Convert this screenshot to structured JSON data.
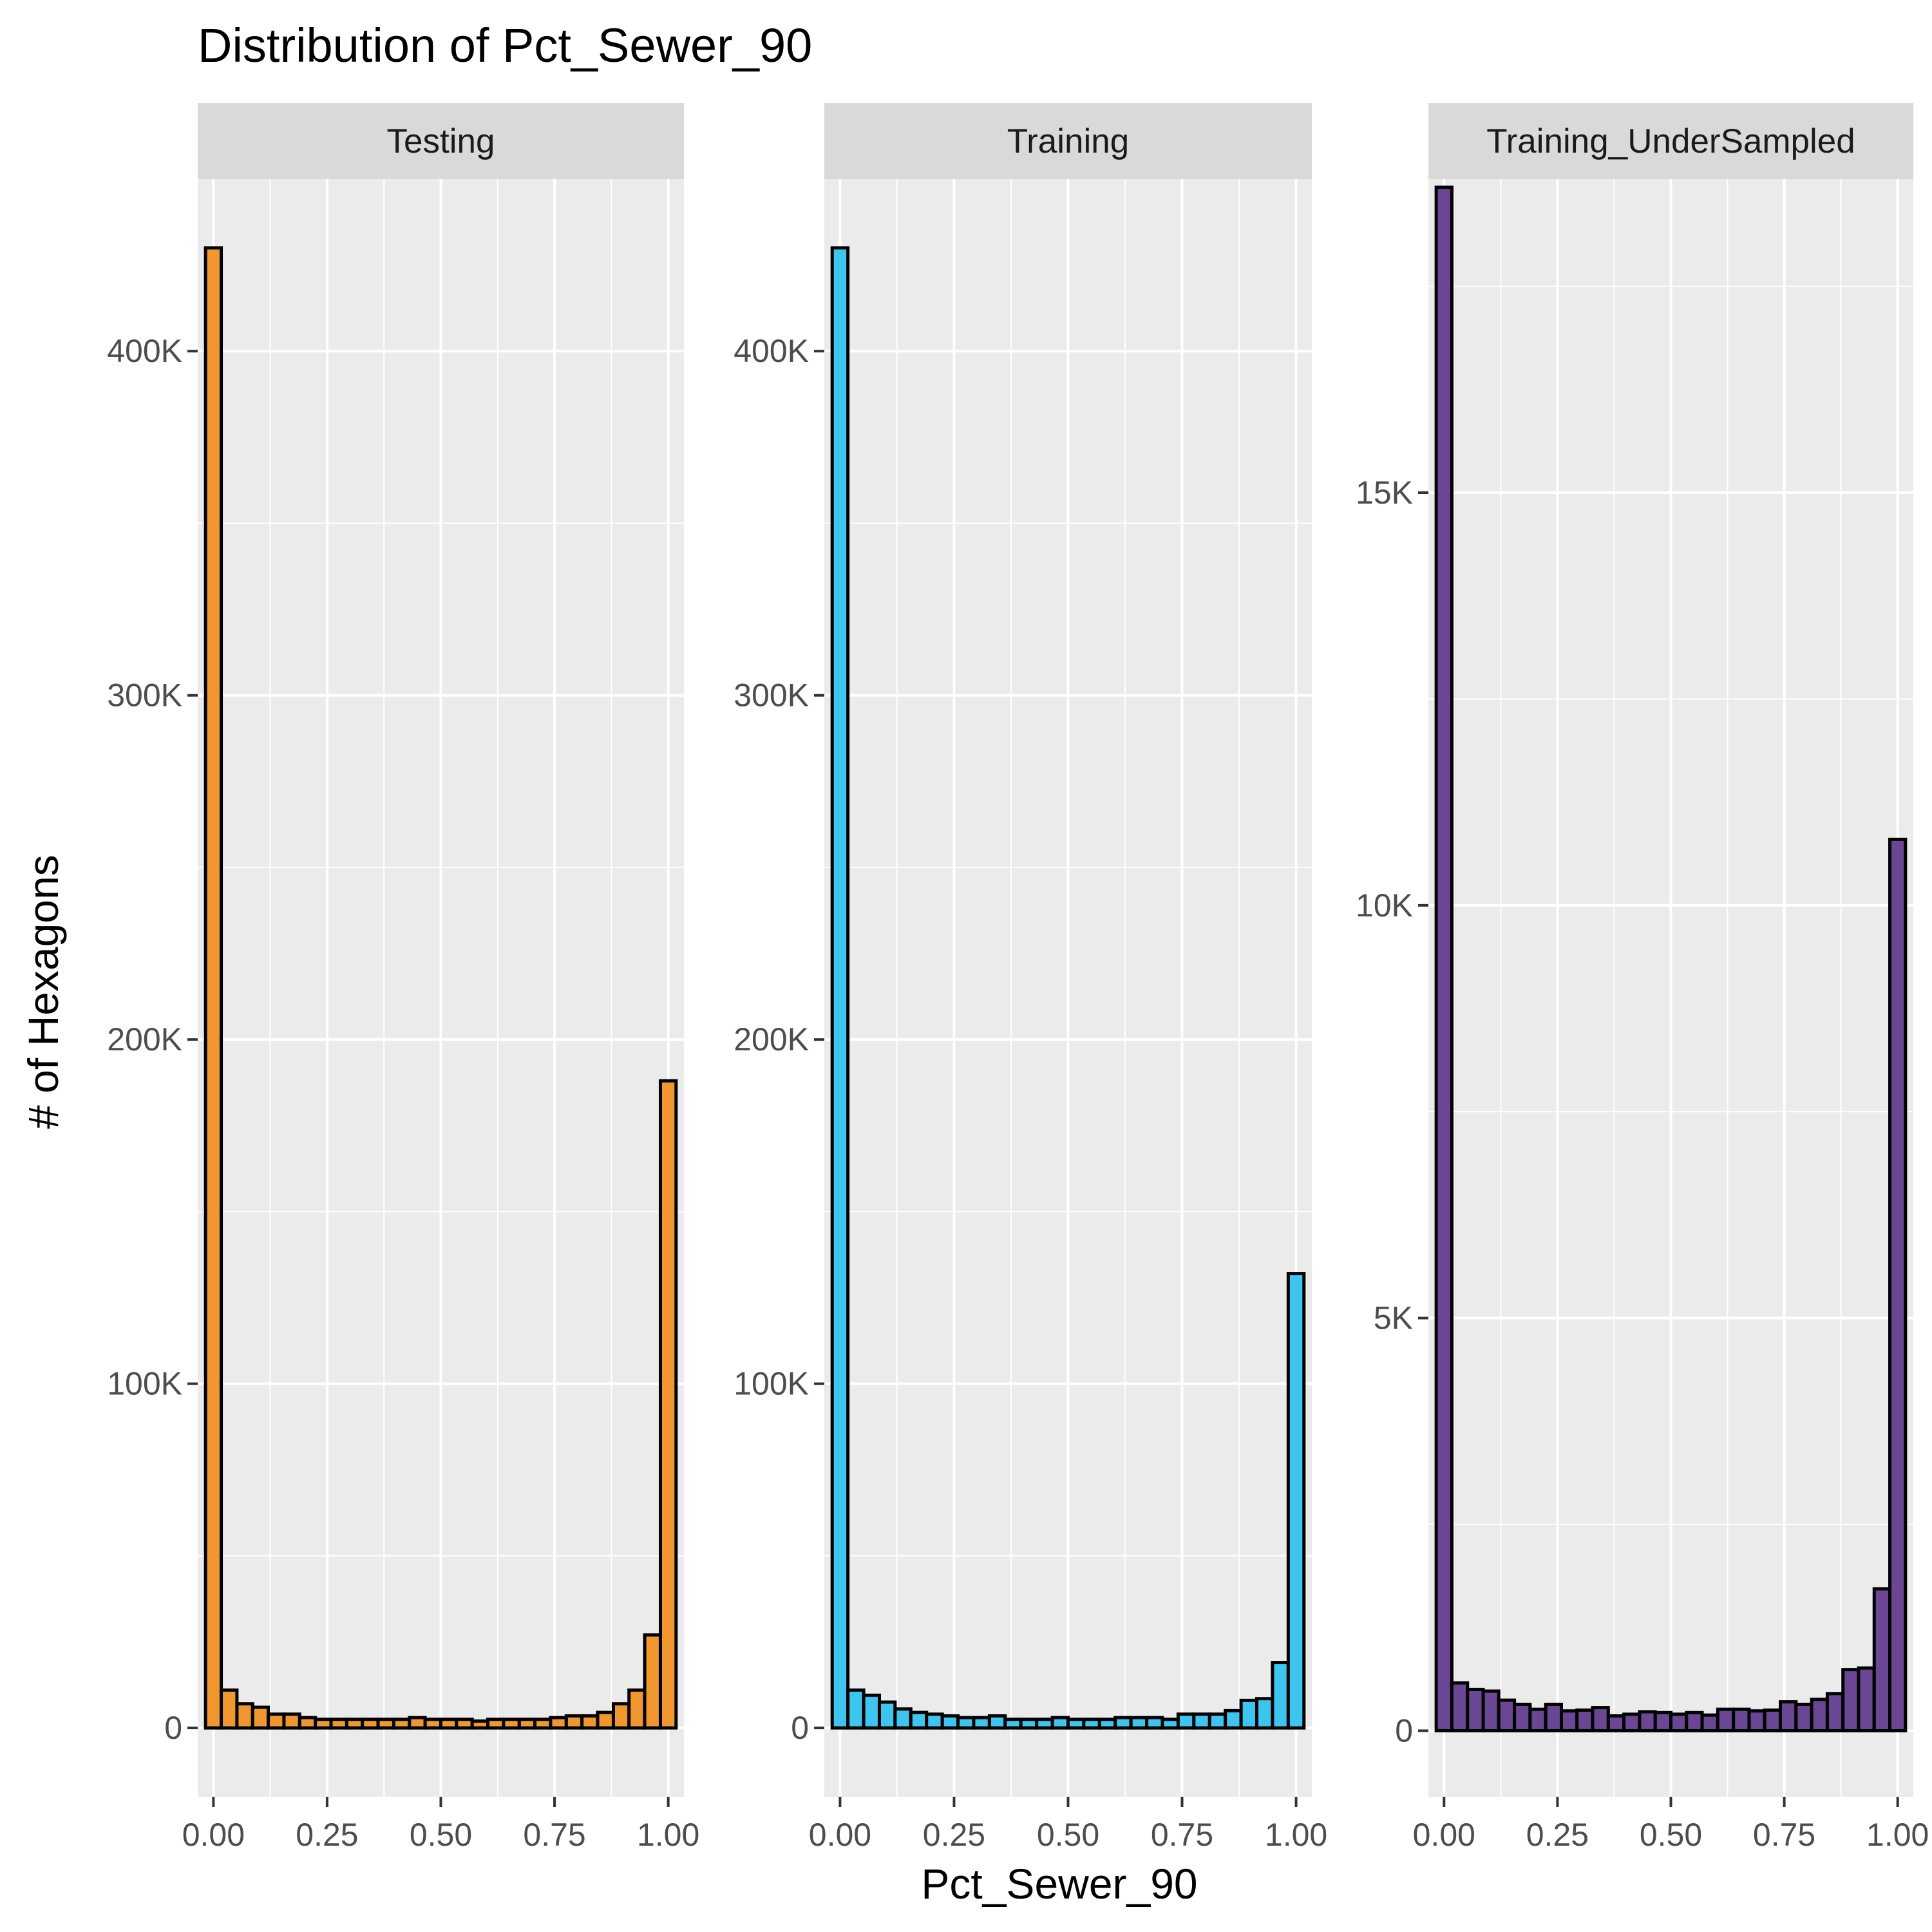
{
  "chart_data": {
    "type": "bar",
    "title": "Distribution of Pct_Sewer_90",
    "xlabel": "Pct_Sewer_90",
    "ylabel": "# of Hexagons",
    "x_ticks": [
      "0.00",
      "0.25",
      "0.50",
      "0.75",
      "1.00"
    ],
    "x_tick_values": [
      0,
      0.25,
      0.5,
      0.75,
      1
    ],
    "xlim": [
      -0.0345,
      1.0345
    ],
    "bin_width": 0.0345,
    "bin_centers": [
      0,
      0.0345,
      0.069,
      0.1034,
      0.1379,
      0.1724,
      0.2069,
      0.2414,
      0.2759,
      0.3103,
      0.3448,
      0.3793,
      0.4138,
      0.4483,
      0.4828,
      0.5172,
      0.5517,
      0.5862,
      0.6207,
      0.6552,
      0.6897,
      0.7241,
      0.7586,
      0.7931,
      0.8276,
      0.8621,
      0.8966,
      0.931,
      0.9655,
      1
    ],
    "grid": true,
    "legend": "none",
    "panels": [
      {
        "name": "Testing",
        "fill": "#F0972F",
        "ylim": [
          -20000,
          450000
        ],
        "y_ticks": [
          0,
          100000,
          200000,
          300000,
          400000
        ],
        "y_tick_labels": [
          "0",
          "100K",
          "200K",
          "300K",
          "400K"
        ],
        "values": [
          430000,
          11000,
          7000,
          6000,
          4000,
          4000,
          3000,
          2500,
          2500,
          2500,
          2500,
          2500,
          2500,
          3000,
          2500,
          2500,
          2500,
          2000,
          2500,
          2500,
          2500,
          2500,
          3000,
          3500,
          3500,
          4500,
          7000,
          11000,
          27000,
          188000
        ]
      },
      {
        "name": "Training",
        "fill": "#3DC5EF",
        "ylim": [
          -20000,
          450000
        ],
        "y_ticks": [
          0,
          100000,
          200000,
          300000,
          400000
        ],
        "y_tick_labels": [
          "0",
          "100K",
          "200K",
          "300K",
          "400K"
        ],
        "values": [
          430000,
          11000,
          9500,
          7500,
          5500,
          4500,
          4000,
          3500,
          3000,
          3000,
          3500,
          2500,
          2500,
          2500,
          3000,
          2500,
          2500,
          2500,
          3000,
          3000,
          3000,
          2500,
          4000,
          4000,
          4000,
          5000,
          8000,
          8500,
          19000,
          132000
        ]
      },
      {
        "name": "Training_UnderSampled",
        "fill": "#6A4694",
        "ylim": [
          -800,
          18800
        ],
        "y_ticks": [
          0,
          5000,
          10000,
          15000
        ],
        "y_tick_labels": [
          "0",
          "5K",
          "10K",
          "15K"
        ],
        "values": [
          18700,
          580,
          500,
          480,
          370,
          320,
          260,
          320,
          240,
          250,
          280,
          180,
          200,
          230,
          220,
          200,
          220,
          190,
          260,
          260,
          240,
          250,
          350,
          320,
          380,
          450,
          740,
          760,
          1720,
          10800
        ]
      }
    ]
  }
}
